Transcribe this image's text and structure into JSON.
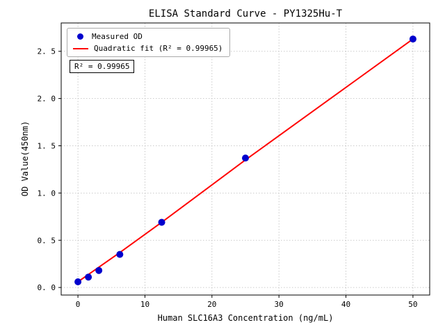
{
  "chart_data": {
    "type": "scatter",
    "title": "ELISA Standard Curve - PY1325Hu-T",
    "xlabel": "Human SLC16A3 Concentration (ng/mL)",
    "ylabel": "OD Value(450nm)",
    "xlim": [
      -2.5,
      52.5
    ],
    "ylim": [
      -0.08,
      2.8
    ],
    "xticks": [
      0,
      10,
      20,
      30,
      40,
      50
    ],
    "xtick_labels": [
      "0",
      "10",
      "20",
      "30",
      "40",
      "50"
    ],
    "yticks": [
      0,
      0.5,
      1.0,
      1.5,
      2.0,
      2.5
    ],
    "ytick_labels": [
      "0. 0",
      "0. 5",
      "1. 0",
      "1. 5",
      "2. 0",
      "2. 5"
    ],
    "grid": true,
    "legend": {
      "position": "upper-left",
      "items": [
        "Measured OD",
        "Quadratic fit (R² = 0.99965)"
      ]
    },
    "annotation": "R² = 0.99965",
    "series": [
      {
        "name": "Measured OD",
        "x": [
          0,
          1.56,
          3.12,
          6.25,
          12.5,
          25,
          50
        ],
        "y": [
          0.06,
          0.11,
          0.18,
          0.35,
          0.69,
          1.37,
          2.63
        ]
      }
    ],
    "fit_line": {
      "name": "Quadratic fit",
      "r_squared": 0.99965,
      "x": [
        0,
        6.25,
        12.5,
        25,
        37.5,
        50
      ],
      "y": [
        0.06,
        0.37,
        0.69,
        1.35,
        1.99,
        2.63
      ]
    },
    "colors": {
      "points": "#0000cd",
      "fit_line": "#ff0000",
      "grid": "#bbbbbb",
      "frame": "#000000"
    }
  }
}
